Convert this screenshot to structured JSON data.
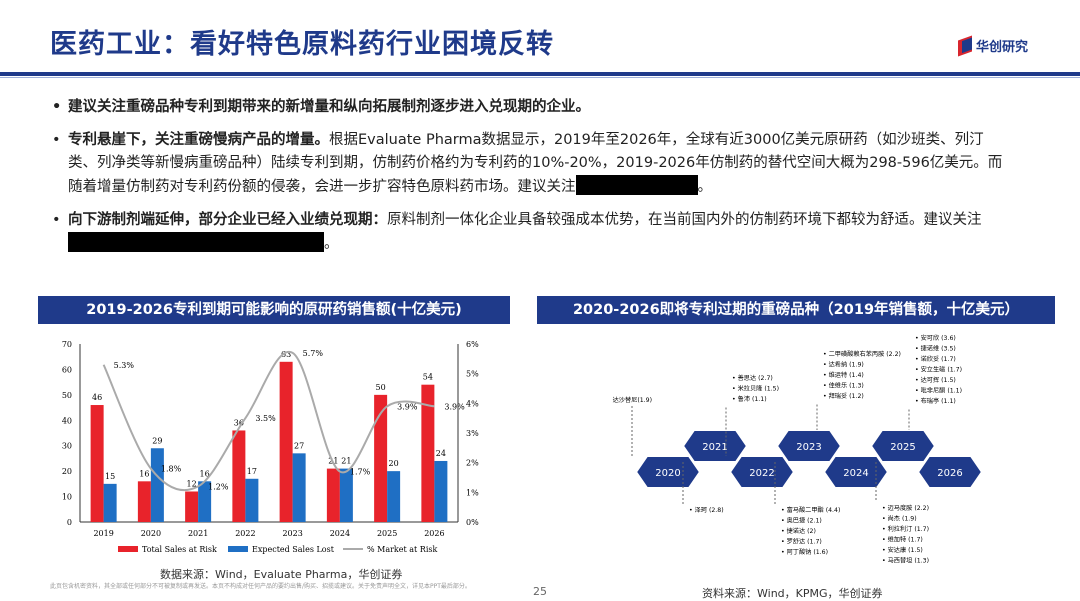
{
  "title": "医药工业：看好特色原料药行业困境反转",
  "logo_text": "华创研究",
  "bullets": {
    "b1": "建议关注重磅品种专利到期带来的新增量和纵向拓展制剂逐步进入兑现期的企业。",
    "b2_bold": "专利悬崖下，关注重磅慢病产品的增量。",
    "b2_text": "根据Evaluate Pharma数据显示，2019年至2026年，全球有近3000亿美元原研药（如沙班类、列汀类、列净类等新慢病重磅品种）陆续专利到期，仿制药价格约为专利药的10%-20%，2019-2026年仿制药的替代空间大概为298-596亿美元。而随着增量仿制药对专利药份额的侵袭，会进一步扩容特色原料药市场。建议关注",
    "b2_end": "。",
    "b3_bold": "向下游制剂端延伸，部分企业已经入业绩兑现期：",
    "b3_text": "原料制剂一体化企业具备较强成本优势，在当前国内外的仿制药环境下都较为舒适。建议关注",
    "b3_end": "。"
  },
  "left_panel": {
    "header": "2019-2026专利到期可能影响的原研药销售额(十亿美元)"
  },
  "right_panel": {
    "header": "2020-2026即将专利过期的重磅品种（2019年销售额，十亿美元）"
  },
  "chart_data": {
    "type": "bar",
    "categories": [
      "2019",
      "2020",
      "2021",
      "2022",
      "2023",
      "2024",
      "2025",
      "2026"
    ],
    "series": [
      {
        "name": "Total Sales at Risk",
        "values": [
          46,
          16,
          12,
          36,
          63,
          21,
          50,
          54
        ],
        "color": "#e8232b"
      },
      {
        "name": "Expected Sales Lost",
        "values": [
          15,
          29,
          16,
          17,
          27,
          21,
          20,
          24
        ],
        "color": "#1f6fc4"
      },
      {
        "name": "% Market at Risk",
        "values": [
          5.3,
          1.8,
          1.2,
          3.5,
          5.7,
          1.7,
          3.9,
          3.9
        ],
        "color": "#aaaaaa",
        "axis": "right"
      }
    ],
    "pct_labels": [
      "5.3%",
      "1.8%",
      "1.2%",
      "3.5%",
      "5.7%",
      "1.7%",
      "3.9%",
      "3.9%"
    ],
    "ylim": [
      0,
      70
    ],
    "yticks": [
      "0",
      "10",
      "20",
      "30",
      "40",
      "50",
      "60",
      "70"
    ],
    "y2lim": [
      0,
      6
    ],
    "y2ticks": [
      "0%",
      "1%",
      "2%",
      "3%",
      "4%",
      "5%",
      "6%"
    ],
    "legend_position": "bottom"
  },
  "timeline": {
    "years_bottom": [
      "2020",
      "2022",
      "2024",
      "2026"
    ],
    "years_top": [
      "2021",
      "2023",
      "2025"
    ],
    "above": {
      "2020": [
        "达沙替尼(1.9)"
      ],
      "2022": [
        "善思达 (2.7)",
        "米拉贝隆 (1.5)",
        "鲁沛 (1.1)"
      ],
      "2023": [
        "二甲磺酸赖右苯丙胺 (2.2)",
        "达希纳 (1.9)",
        "维运特 (1.4)",
        "佳维乐 (1.3)",
        "拜瑞妥 (1.2)"
      ],
      "2025": [
        "安可欣 (3.6)",
        "捷诺维 (3.5)",
        "诺欣妥 (1.7)",
        "安立生磁 (1.7)",
        "达可挥 (1.5)",
        "吡非尼酮 (1.1)",
        "布瑞亭 (1.1)"
      ]
    },
    "below": {
      "2021": [
        "泽珂 (2.8)"
      ],
      "2023": [
        "富马酸二甲酯 (4.4)",
        "奥巴捷 (2.1)",
        "捷诺达 (2)",
        "罗舒达 (1.7)",
        "阿丁酸钠 (1.6)"
      ],
      "2025": [
        "迈马度胺 (2.2)",
        "尚杰 (1.9)",
        "利拉利汀 (1.7)",
        "维加特 (1.7)",
        "安达康 (1.5)",
        "马西替坦 (1.3)"
      ]
    }
  },
  "source_left": "数据来源：Wind，Evaluate Pharma，华创证券",
  "source_right": "资料来源：Wind，KPMG，华创证券",
  "disclaimer": "此页包含机密资料，其全部或任何部分不可被复制或再发送。本页不构成对任何产品的要约出售/购买、招揽或建议。关于免责声明全文，详见本PPT最后部分。",
  "page_number": "25"
}
